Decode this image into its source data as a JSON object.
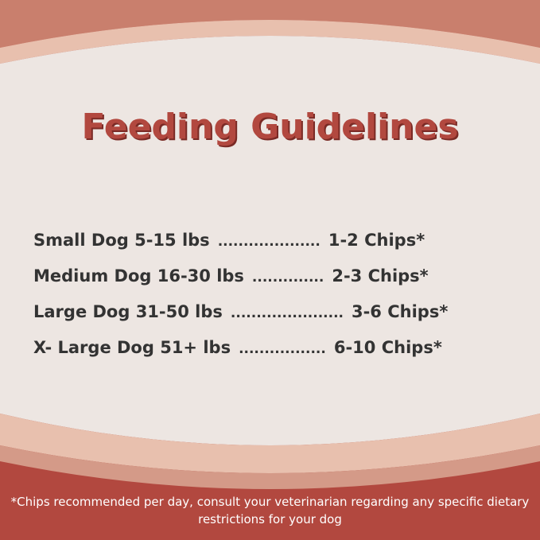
{
  "title": "Feeding Guidelines",
  "rows": [
    {
      "size": "Small Dog 5-15 lbs",
      "dots": "....................",
      "chips": "1-2 Chips*"
    },
    {
      "size": "Medium Dog 16-30 lbs",
      "dots": "..............",
      "chips": "2-3 Chips*"
    },
    {
      "size": "Large Dog 31-50 lbs",
      "dots": "......................",
      "chips": "3-6 Chips*"
    },
    {
      "size": "X- Large Dog 51+ lbs",
      "dots": ".................",
      "chips": "6-10 Chips*"
    }
  ],
  "footnote": "*Chips recommended per day, consult your veterinarian regarding any specific dietary restrictions for your dog"
}
